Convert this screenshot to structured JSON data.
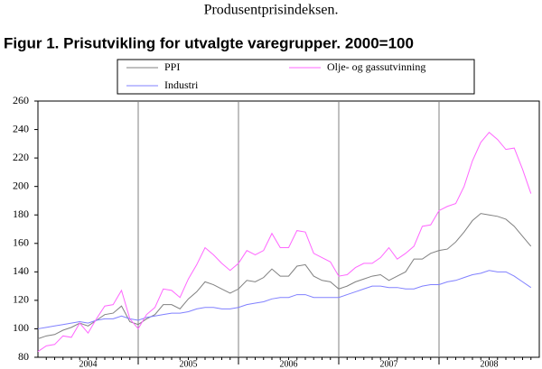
{
  "chart_data": {
    "type": "line",
    "subtitle": "Produsentprisindeksen.",
    "title": "Figur 1. Prisutvikling for utvalgte varegrupper. 2000=100",
    "year_labels": [
      "2004",
      "2005",
      "2006",
      "2007",
      "2008"
    ],
    "months_per_year": 12,
    "series": [
      {
        "name": "PPI",
        "color": "#808080",
        "values": [
          93,
          95,
          96,
          99,
          101,
          104,
          102,
          106,
          110,
          111,
          116,
          105,
          103,
          107,
          110,
          117,
          117,
          114,
          121,
          126,
          133,
          131,
          128,
          125,
          128,
          134,
          133,
          136,
          142,
          137,
          137,
          144,
          145,
          137,
          134,
          133,
          128,
          130,
          133,
          135,
          137,
          138,
          134,
          137,
          140,
          149,
          149,
          153,
          155,
          156,
          161,
          168,
          176,
          181,
          180,
          179,
          177,
          172,
          165,
          158
        ]
      },
      {
        "name": "Industri",
        "color": "#8080ff",
        "values": [
          100,
          101,
          102,
          103,
          104,
          105,
          104,
          106,
          107,
          107,
          109,
          107,
          106,
          108,
          109,
          110,
          111,
          111,
          112,
          114,
          115,
          115,
          114,
          114,
          115,
          117,
          118,
          119,
          121,
          122,
          122,
          124,
          124,
          122,
          122,
          122,
          122,
          124,
          126,
          128,
          130,
          130,
          129,
          129,
          128,
          128,
          130,
          131,
          131,
          133,
          134,
          136,
          138,
          139,
          141,
          140,
          140,
          137,
          133,
          129
        ]
      },
      {
        "name": "Olje- og gassutvinning",
        "color": "#ff66ff",
        "values": [
          84,
          88,
          89,
          95,
          94,
          104,
          97,
          107,
          116,
          117,
          127,
          107,
          100,
          110,
          115,
          128,
          127,
          122,
          135,
          145,
          157,
          152,
          146,
          141,
          146,
          155,
          152,
          155,
          167,
          157,
          157,
          169,
          168,
          153,
          150,
          147,
          137,
          138,
          143,
          146,
          146,
          150,
          157,
          149,
          153,
          158,
          172,
          173,
          183,
          186,
          188,
          200,
          218,
          231,
          238,
          233,
          226,
          227,
          212,
          195
        ]
      }
    ],
    "ylim": [
      80,
      260
    ],
    "yticks": [
      80,
      100,
      120,
      140,
      160,
      180,
      200,
      220,
      240,
      260
    ],
    "grid": true
  }
}
